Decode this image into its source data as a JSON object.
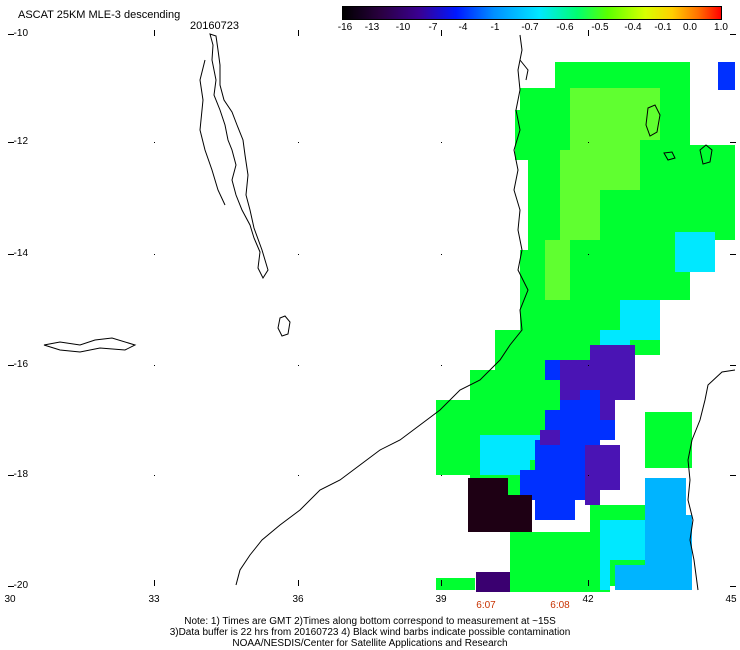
{
  "header": {
    "title": "ASCAT 25KM MLE-3 descending",
    "date": "20160723"
  },
  "colorbar": {
    "labels": [
      "-16",
      "-13",
      "-10",
      "-7",
      "-4",
      "-1",
      "-0.7",
      "-0.6",
      "-0.5",
      "-0.4",
      "-0.1",
      "0.0",
      "1.0"
    ]
  },
  "axes": {
    "x_labels": [
      "30",
      "33",
      "36",
      "39",
      "42",
      "45"
    ],
    "y_labels": [
      "-10",
      "-12",
      "-14",
      "-16",
      "-18",
      "-20"
    ]
  },
  "times": [
    "6:07",
    "6:08"
  ],
  "notes": {
    "line1": "Note: 1) Times are GMT 2)Times along bottom correspond to measurement at ~15S",
    "line2": "3)Data buffer is 22 hrs from 20160723 4) Black wind barbs indicate possible contamination",
    "line3": "NOAA/NESDIS/Center for Satellite Applications and Research"
  },
  "colors": {
    "green": "#00ff30",
    "cyan": "#00e8ff",
    "sky": "#00b4ff",
    "blue": "#0030ff",
    "violet": "#4a14b4",
    "purple": "#3a0070",
    "dark": "#1e0014"
  }
}
